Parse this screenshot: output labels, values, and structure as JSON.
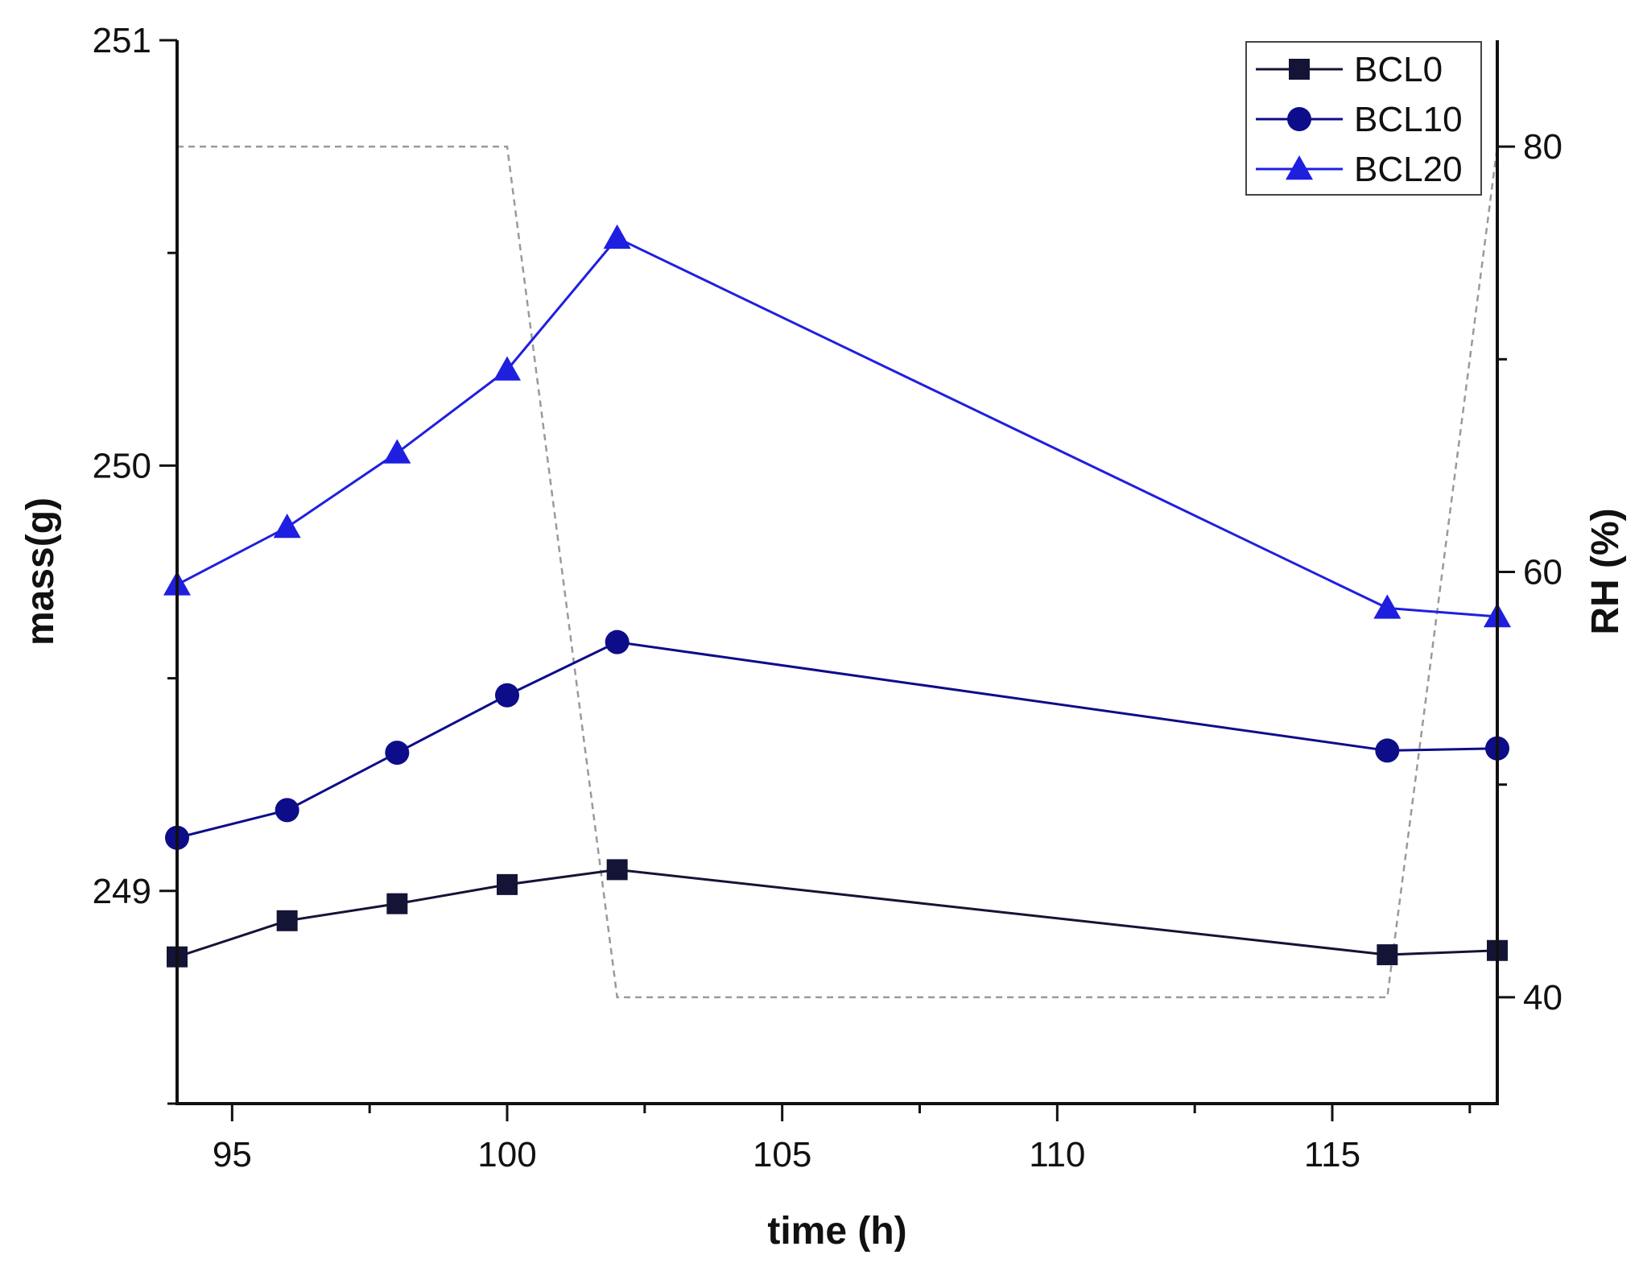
{
  "chart_data": {
    "type": "line",
    "title": "",
    "xlabel": "time (h)",
    "ylabel": "mass(g)",
    "y2label": "RH (%)",
    "xlim": [
      94,
      118
    ],
    "ylim": [
      248.5,
      251
    ],
    "y2lim": [
      35,
      85
    ],
    "xticks": [
      95,
      100,
      105,
      110,
      115
    ],
    "yticks": [
      249,
      250,
      251
    ],
    "y2ticks": [
      40,
      60,
      80
    ],
    "grid": false,
    "legend_position": "top-right",
    "series": [
      {
        "name": "BCL0",
        "axis": "left",
        "marker": "square",
        "color": "#141437",
        "x": [
          94,
          96,
          98,
          100,
          102,
          116,
          118
        ],
        "values": [
          248.845,
          248.93,
          248.97,
          249.015,
          249.05,
          248.85,
          248.86
        ]
      },
      {
        "name": "BCL10",
        "axis": "left",
        "marker": "circle",
        "color": "#0d0d8a",
        "x": [
          94,
          96,
          98,
          100,
          102,
          116,
          118
        ],
        "values": [
          249.125,
          249.19,
          249.325,
          249.46,
          249.585,
          249.33,
          249.335
        ]
      },
      {
        "name": "BCL20",
        "axis": "left",
        "marker": "triangle",
        "color": "#1f1fe0",
        "x": [
          94,
          96,
          98,
          100,
          102,
          116,
          118
        ],
        "values": [
          249.72,
          249.855,
          250.03,
          250.225,
          250.535,
          249.665,
          249.645
        ]
      },
      {
        "name": "RH",
        "axis": "right",
        "marker": "none",
        "style": "dashed",
        "color": "#9a9a9a",
        "x": [
          94,
          100,
          102,
          116,
          118
        ],
        "values": [
          80,
          80,
          40,
          40,
          80
        ]
      }
    ]
  }
}
